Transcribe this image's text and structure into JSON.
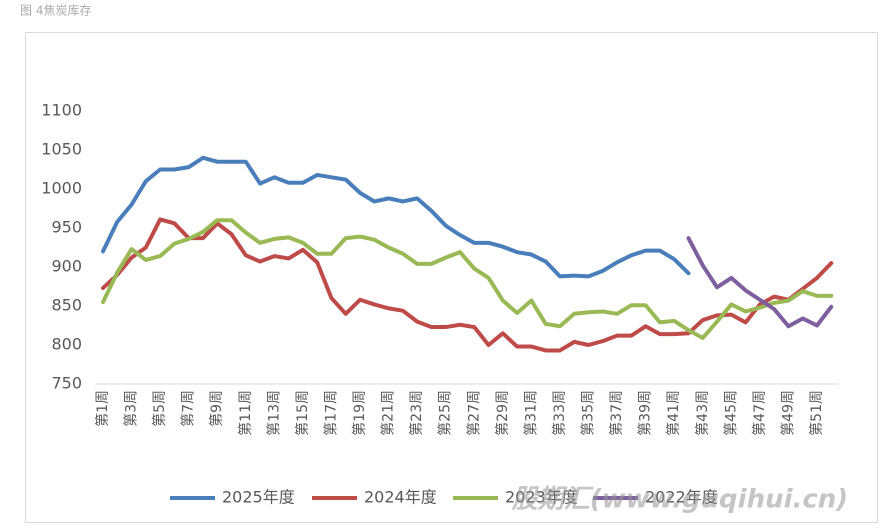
{
  "caption": "图 4焦炭库存",
  "watermark": "股期汇(www.guqihui.cn)",
  "chart_data": {
    "type": "line",
    "categories": [
      "第1周",
      null,
      "第3周",
      null,
      "第5周",
      null,
      "第7周",
      null,
      "第9周",
      null,
      "第11周",
      null,
      "第13周",
      null,
      "第15周",
      null,
      "第17周",
      null,
      "第19周",
      null,
      "第21周",
      null,
      "第23周",
      null,
      "第25周",
      null,
      "第27周",
      null,
      "第29周",
      null,
      "第31周",
      null,
      "第33周",
      null,
      "第35周",
      null,
      "第37周",
      null,
      "第39周",
      null,
      "第41周",
      null,
      "第43周",
      null,
      "第45周",
      null,
      "第47周",
      null,
      "第49周",
      null,
      "第51周",
      null
    ],
    "series": [
      {
        "name": "2025年度",
        "color": "#4a7ebb",
        "values": [
          920,
          958,
          980,
          1010,
          1025,
          1025,
          1028,
          1040,
          1035,
          1035,
          1035,
          1007,
          1015,
          1008,
          1008,
          1018,
          1015,
          1012,
          995,
          984,
          988,
          984,
          988,
          972,
          953,
          941,
          931,
          931,
          926,
          919,
          916,
          907,
          888,
          889,
          888,
          895,
          906,
          915,
          921,
          921,
          910,
          892,
          null,
          null,
          null,
          null,
          null,
          null,
          null,
          null,
          null,
          null
        ]
      },
      {
        "name": "2024年度",
        "color": "#be4b48",
        "values": [
          873,
          890,
          912,
          925,
          961,
          956,
          937,
          937,
          956,
          942,
          915,
          907,
          914,
          911,
          922,
          906,
          860,
          840,
          858,
          852,
          847,
          844,
          830,
          823,
          823,
          826,
          823,
          800,
          815,
          798,
          798,
          793,
          793,
          804,
          800,
          805,
          812,
          812,
          824,
          814,
          814,
          815,
          832,
          838,
          839,
          829,
          852,
          862,
          858,
          872,
          886,
          905
        ]
      },
      {
        "name": "2023年度",
        "color": "#98b954",
        "values": [
          855,
          893,
          923,
          909,
          914,
          930,
          936,
          945,
          960,
          960,
          944,
          931,
          936,
          938,
          931,
          917,
          917,
          937,
          939,
          935,
          925,
          917,
          904,
          904,
          912,
          919,
          898,
          886,
          857,
          841,
          857,
          827,
          824,
          840,
          842,
          843,
          840,
          851,
          851,
          829,
          831,
          819,
          809,
          830,
          852,
          843,
          848,
          854,
          857,
          869,
          863,
          863
        ]
      },
      {
        "name": "2022年度",
        "color": "#7d5fa0",
        "values": [
          null,
          null,
          null,
          null,
          null,
          null,
          null,
          null,
          null,
          null,
          null,
          null,
          null,
          null,
          null,
          null,
          null,
          null,
          null,
          null,
          null,
          null,
          null,
          null,
          null,
          null,
          null,
          null,
          null,
          null,
          null,
          null,
          null,
          null,
          null,
          null,
          null,
          null,
          null,
          null,
          null,
          937,
          902,
          874,
          886,
          870,
          858,
          846,
          824,
          834,
          825,
          849
        ]
      }
    ],
    "ylim": [
      750,
      1100
    ],
    "yticks": [
      750,
      800,
      850,
      900,
      950,
      1000,
      1050,
      1100
    ],
    "grid": false,
    "legend": "bottom"
  }
}
